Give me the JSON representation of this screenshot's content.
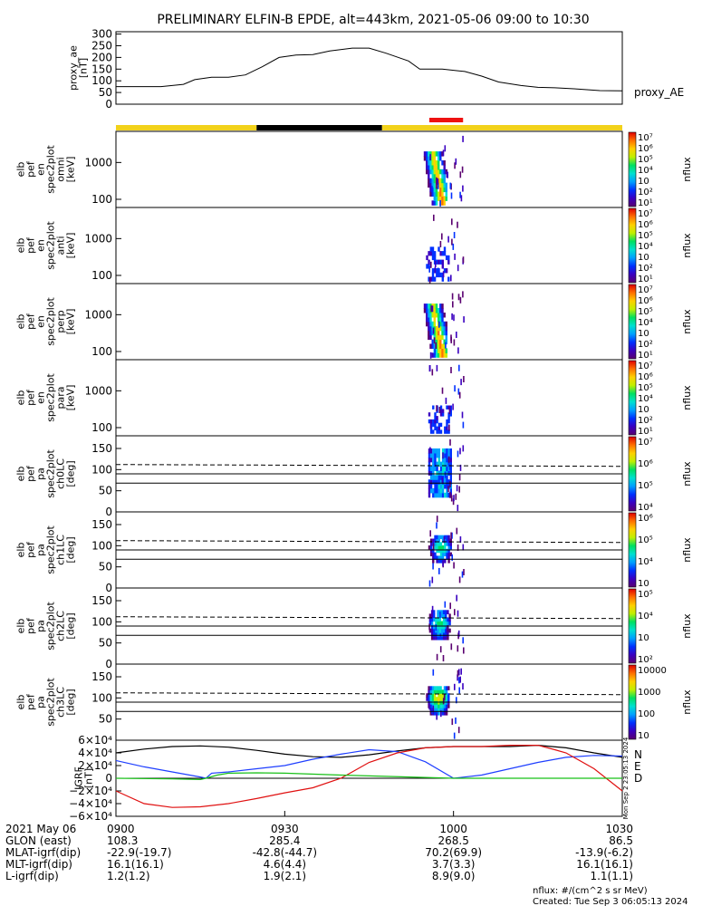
{
  "title": "PRELIMINARY ELFIN-B EPDE, alt=443km, 2021-05-06 09:00 to 10:30",
  "colors": {
    "yellow_bar": "#f2d21b",
    "black_bar": "#000000",
    "red_bar": "#ee1111",
    "grf_n": "#000000",
    "grf_e": "#1f3fff",
    "grf_d": "#e01010",
    "grf_green": "#18c018",
    "colorscale": [
      "#5a0070",
      "#3a00c0",
      "#0030ff",
      "#00a0ff",
      "#00e0d0",
      "#00e060",
      "#c0f000",
      "#ffd000",
      "#ff7000",
      "#e00000"
    ]
  },
  "chart_data": [
    {
      "type": "line",
      "panel": "proxy_ae",
      "ylabel": [
        "proxy_ae",
        "[nT]"
      ],
      "legend": "proxy_AE",
      "yticks": [
        "300",
        "250",
        "200",
        "150",
        "100",
        "50",
        "0"
      ],
      "ylim": [
        0,
        310
      ],
      "xlim": [
        0,
        90
      ],
      "x": [
        0,
        4,
        8,
        12,
        14,
        17,
        20,
        23,
        26,
        29,
        32,
        35,
        38,
        42,
        45,
        48,
        52,
        54,
        58,
        62,
        65,
        68,
        72,
        75,
        78,
        82,
        86,
        90
      ],
      "y": [
        75,
        75,
        75,
        85,
        105,
        115,
        115,
        125,
        160,
        200,
        210,
        212,
        228,
        240,
        240,
        218,
        185,
        150,
        150,
        140,
        120,
        95,
        80,
        72,
        70,
        65,
        58,
        57
      ]
    },
    {
      "type": "bar_strip",
      "panel": "orbit_bars",
      "segments": [
        {
          "color": "yellow",
          "x0": 0,
          "x1": 25
        },
        {
          "color": "black",
          "x0": 25,
          "x1": 47.3
        },
        {
          "color": "yellow",
          "x0": 47.3,
          "x1": 90
        }
      ],
      "marker": {
        "color": "red",
        "x0": 55.7,
        "x1": 61.7
      }
    },
    {
      "type": "heatmap",
      "panel": "omni",
      "ylabel": [
        "elb",
        "pef",
        "en",
        "spec2plot",
        "omni",
        "[keV]"
      ],
      "ylog": true,
      "ylim": [
        60,
        7000
      ],
      "yticks": [
        "1000",
        "100"
      ],
      "colorbar": {
        "label": "nflux",
        "ticks": [
          "10⁷",
          "10⁶",
          "10⁵",
          "10⁴",
          "10⁳",
          "10²",
          "10¹"
        ],
        "range": [
          1,
          7
        ]
      },
      "blobs": [
        {
          "x": 56.8,
          "ymin": 70,
          "ymax": 2000,
          "peak": "core"
        }
      ],
      "scatter_x": [
        55.6,
        61.8
      ]
    },
    {
      "type": "heatmap",
      "panel": "anti",
      "ylabel": [
        "elb",
        "pef",
        "en",
        "spec2plot",
        "anti",
        "[keV]"
      ],
      "ylog": true,
      "ylim": [
        60,
        7000
      ],
      "yticks": [
        "1000",
        "100"
      ],
      "colorbar": {
        "label": "nflux",
        "ticks": [
          "10⁷",
          "10⁶",
          "10⁵",
          "10⁴",
          "10⁳",
          "10²",
          "10¹"
        ],
        "range": [
          1,
          7
        ]
      },
      "blobs": [
        {
          "x": 57.2,
          "ymin": 70,
          "ymax": 600,
          "peak": "weak"
        }
      ],
      "scatter_x": [
        55.6,
        61.8
      ]
    },
    {
      "type": "heatmap",
      "panel": "perp",
      "ylabel": [
        "elb",
        "pef",
        "en",
        "spec2plot",
        "perp",
        "[keV]"
      ],
      "ylog": true,
      "ylim": [
        60,
        7000
      ],
      "yticks": [
        "1000",
        "100"
      ],
      "colorbar": {
        "label": "nflux",
        "ticks": [
          "10⁷",
          "10⁶",
          "10⁵",
          "10⁴",
          "10⁳",
          "10²",
          "10¹"
        ],
        "range": [
          1,
          7
        ]
      },
      "blobs": [
        {
          "x": 56.8,
          "ymin": 70,
          "ymax": 2000,
          "peak": "core"
        }
      ],
      "scatter_x": [
        55.6,
        61.8
      ]
    },
    {
      "type": "heatmap",
      "panel": "para",
      "ylabel": [
        "elb",
        "pef",
        "en",
        "spec2plot",
        "para",
        "[keV]"
      ],
      "ylog": true,
      "ylim": [
        60,
        7000
      ],
      "yticks": [
        "1000",
        "100"
      ],
      "colorbar": {
        "label": "nflux",
        "ticks": [
          "10⁷",
          "10⁶",
          "10⁵",
          "10⁴",
          "10⁳",
          "10²",
          "10¹"
        ],
        "range": [
          1,
          7
        ]
      },
      "blobs": [
        {
          "x": 57.6,
          "ymin": 70,
          "ymax": 400,
          "peak": "weak"
        }
      ],
      "scatter_x": [
        55.6,
        61.8
      ]
    },
    {
      "type": "heatmap",
      "panel": "ch0LC",
      "ylabel": [
        "elb",
        "pef",
        "pa",
        "spec2plot",
        "ch0LC",
        "[deg]"
      ],
      "ylim": [
        0,
        180
      ],
      "yticks": [
        "150",
        "100",
        "50",
        "0"
      ],
      "lines": {
        "dashed": 112,
        "solid": [
          90,
          68
        ]
      },
      "colorbar": {
        "label": "nflux",
        "ticks": [
          "10⁷",
          "10⁶",
          "10⁵",
          "10⁴"
        ],
        "range": [
          3.5,
          7
        ]
      },
      "blobs": [
        {
          "x": 57.6,
          "ymin": 35,
          "ymax": 150,
          "peak": "dark"
        }
      ],
      "scatter_x": [
        55.6,
        61.8
      ]
    },
    {
      "type": "heatmap",
      "panel": "ch1LC",
      "ylabel": [
        "elb",
        "pef",
        "pa",
        "spec2plot",
        "ch1LC",
        "[deg]"
      ],
      "ylim": [
        0,
        180
      ],
      "yticks": [
        "150",
        "100",
        "50",
        "0"
      ],
      "lines": {
        "dashed": 112,
        "solid": [
          90,
          68
        ]
      },
      "colorbar": {
        "label": "nflux",
        "ticks": [
          "10⁶",
          "10⁵",
          "10⁴",
          "10⁳"
        ],
        "range": [
          2.5,
          6.5
        ]
      },
      "blobs": [
        {
          "x": 57.6,
          "ymin": 60,
          "ymax": 125,
          "peak": "mid"
        }
      ],
      "scatter_x": [
        55.6,
        61.8
      ]
    },
    {
      "type": "heatmap",
      "panel": "ch2LC",
      "ylabel": [
        "elb",
        "pef",
        "pa",
        "spec2plot",
        "ch2LC",
        "[deg]"
      ],
      "ylim": [
        0,
        180
      ],
      "yticks": [
        "150",
        "100",
        "50",
        "0"
      ],
      "lines": {
        "dashed": 112,
        "solid": [
          90,
          68
        ]
      },
      "colorbar": {
        "label": "nflux",
        "ticks": [
          "10⁵",
          "10⁴",
          "10⁳",
          "10²"
        ],
        "range": [
          1.5,
          5.5
        ]
      },
      "blobs": [
        {
          "x": 57.4,
          "ymin": 58,
          "ymax": 128,
          "peak": "mid"
        }
      ],
      "scatter_x": [
        55.6,
        61.8
      ]
    },
    {
      "type": "heatmap",
      "panel": "ch3LC",
      "ylabel": [
        "elb",
        "pef",
        "pa",
        "spec2plot",
        "ch3LC",
        "[deg]"
      ],
      "ylim": [
        0,
        180
      ],
      "yticks": [
        "150",
        "100",
        "50"
      ],
      "lines": {
        "dashed": 112,
        "solid": [
          90,
          68
        ]
      },
      "colorbar": {
        "label": "nflux",
        "ticks": [
          "10000",
          "1000",
          "100",
          "10"
        ],
        "range": [
          1,
          4
        ]
      },
      "blobs": [
        {
          "x": 57.2,
          "ymin": 60,
          "ymax": 128,
          "peak": "bright"
        }
      ],
      "scatter_x": [
        55.6,
        61.8
      ]
    },
    {
      "type": "line",
      "panel": "igrf",
      "ylabel": [
        "IGRF",
        "[nT]"
      ],
      "ylim": [
        -60000,
        60000
      ],
      "yticks": [
        "6×10⁴",
        "4×10⁴",
        "2×10⁴",
        "0",
        "−2×10⁴",
        "−4×10⁴",
        "−6×10⁴"
      ],
      "legend": [
        "N",
        "E",
        "D"
      ],
      "side_text": "Mon Sep  2 23:05:13 2024",
      "series": [
        {
          "name": "N",
          "x": [
            0,
            5,
            10,
            15,
            20,
            25,
            30,
            35,
            40,
            45,
            50,
            55,
            60,
            65,
            70,
            75,
            80,
            85,
            90
          ],
          "y": [
            40000,
            46000,
            50000,
            51000,
            49000,
            44000,
            38000,
            34000,
            33000,
            37000,
            43000,
            48000,
            50000,
            50000,
            50000,
            52000,
            48000,
            40000,
            33000
          ]
        },
        {
          "name": "E",
          "x": [
            0,
            5,
            10,
            15,
            16,
            17,
            20,
            25,
            30,
            35,
            40,
            45,
            50,
            55,
            60,
            65,
            70,
            75,
            80,
            85,
            90
          ],
          "y": [
            28000,
            18000,
            10000,
            2000,
            0,
            8000,
            10000,
            15000,
            20000,
            30000,
            38000,
            45000,
            42000,
            26000,
            0,
            5000,
            15000,
            25000,
            33000,
            36000,
            35000
          ]
        },
        {
          "name": "D",
          "x": [
            0,
            5,
            10,
            15,
            20,
            25,
            30,
            35,
            40,
            45,
            50,
            55,
            60,
            65,
            70,
            75,
            78,
            80,
            85,
            90
          ],
          "y": [
            -20000,
            -40000,
            -46000,
            -45000,
            -40000,
            -32000,
            -23000,
            -15000,
            0,
            25000,
            40000,
            48000,
            50000,
            50000,
            52000,
            52000,
            45000,
            40000,
            15000,
            -20000
          ]
        },
        {
          "name": "",
          "x": [
            0,
            10,
            15,
            16,
            18,
            20,
            25,
            30,
            40,
            60,
            90
          ],
          "y": [
            0,
            -1000,
            -2000,
            0,
            5000,
            8000,
            8500,
            8000,
            5000,
            0,
            0
          ]
        }
      ]
    }
  ],
  "xaxis": {
    "row_labels": [
      "2021 May 06",
      "GLON (east)",
      "MLAT-igrf(dip)",
      "MLT-igrf(dip)",
      "L-igrf(dip)"
    ],
    "columns": [
      {
        "x": 0,
        "values": [
          "0900",
          "108.3",
          "-22.9(-19.7)",
          "16.1(16.1)",
          "1.2(1.2)"
        ]
      },
      {
        "x": 30,
        "values": [
          "0930",
          "285.4",
          "-42.8(-44.7)",
          "4.6(4.4)",
          "1.9(2.1)"
        ]
      },
      {
        "x": 60,
        "values": [
          "1000",
          "268.5",
          "70.2(69.9)",
          "3.7(3.3)",
          "8.9(9.0)"
        ]
      },
      {
        "x": 90,
        "values": [
          "1030",
          "86.5",
          "-13.9(-6.2)",
          "16.1(16.1)",
          "1.1(1.1)"
        ]
      }
    ]
  },
  "footer": {
    "units": "nflux: #/(cm^2 s sr MeV)",
    "created": "Created: Tue Sep  3 06:05:13 2024"
  }
}
